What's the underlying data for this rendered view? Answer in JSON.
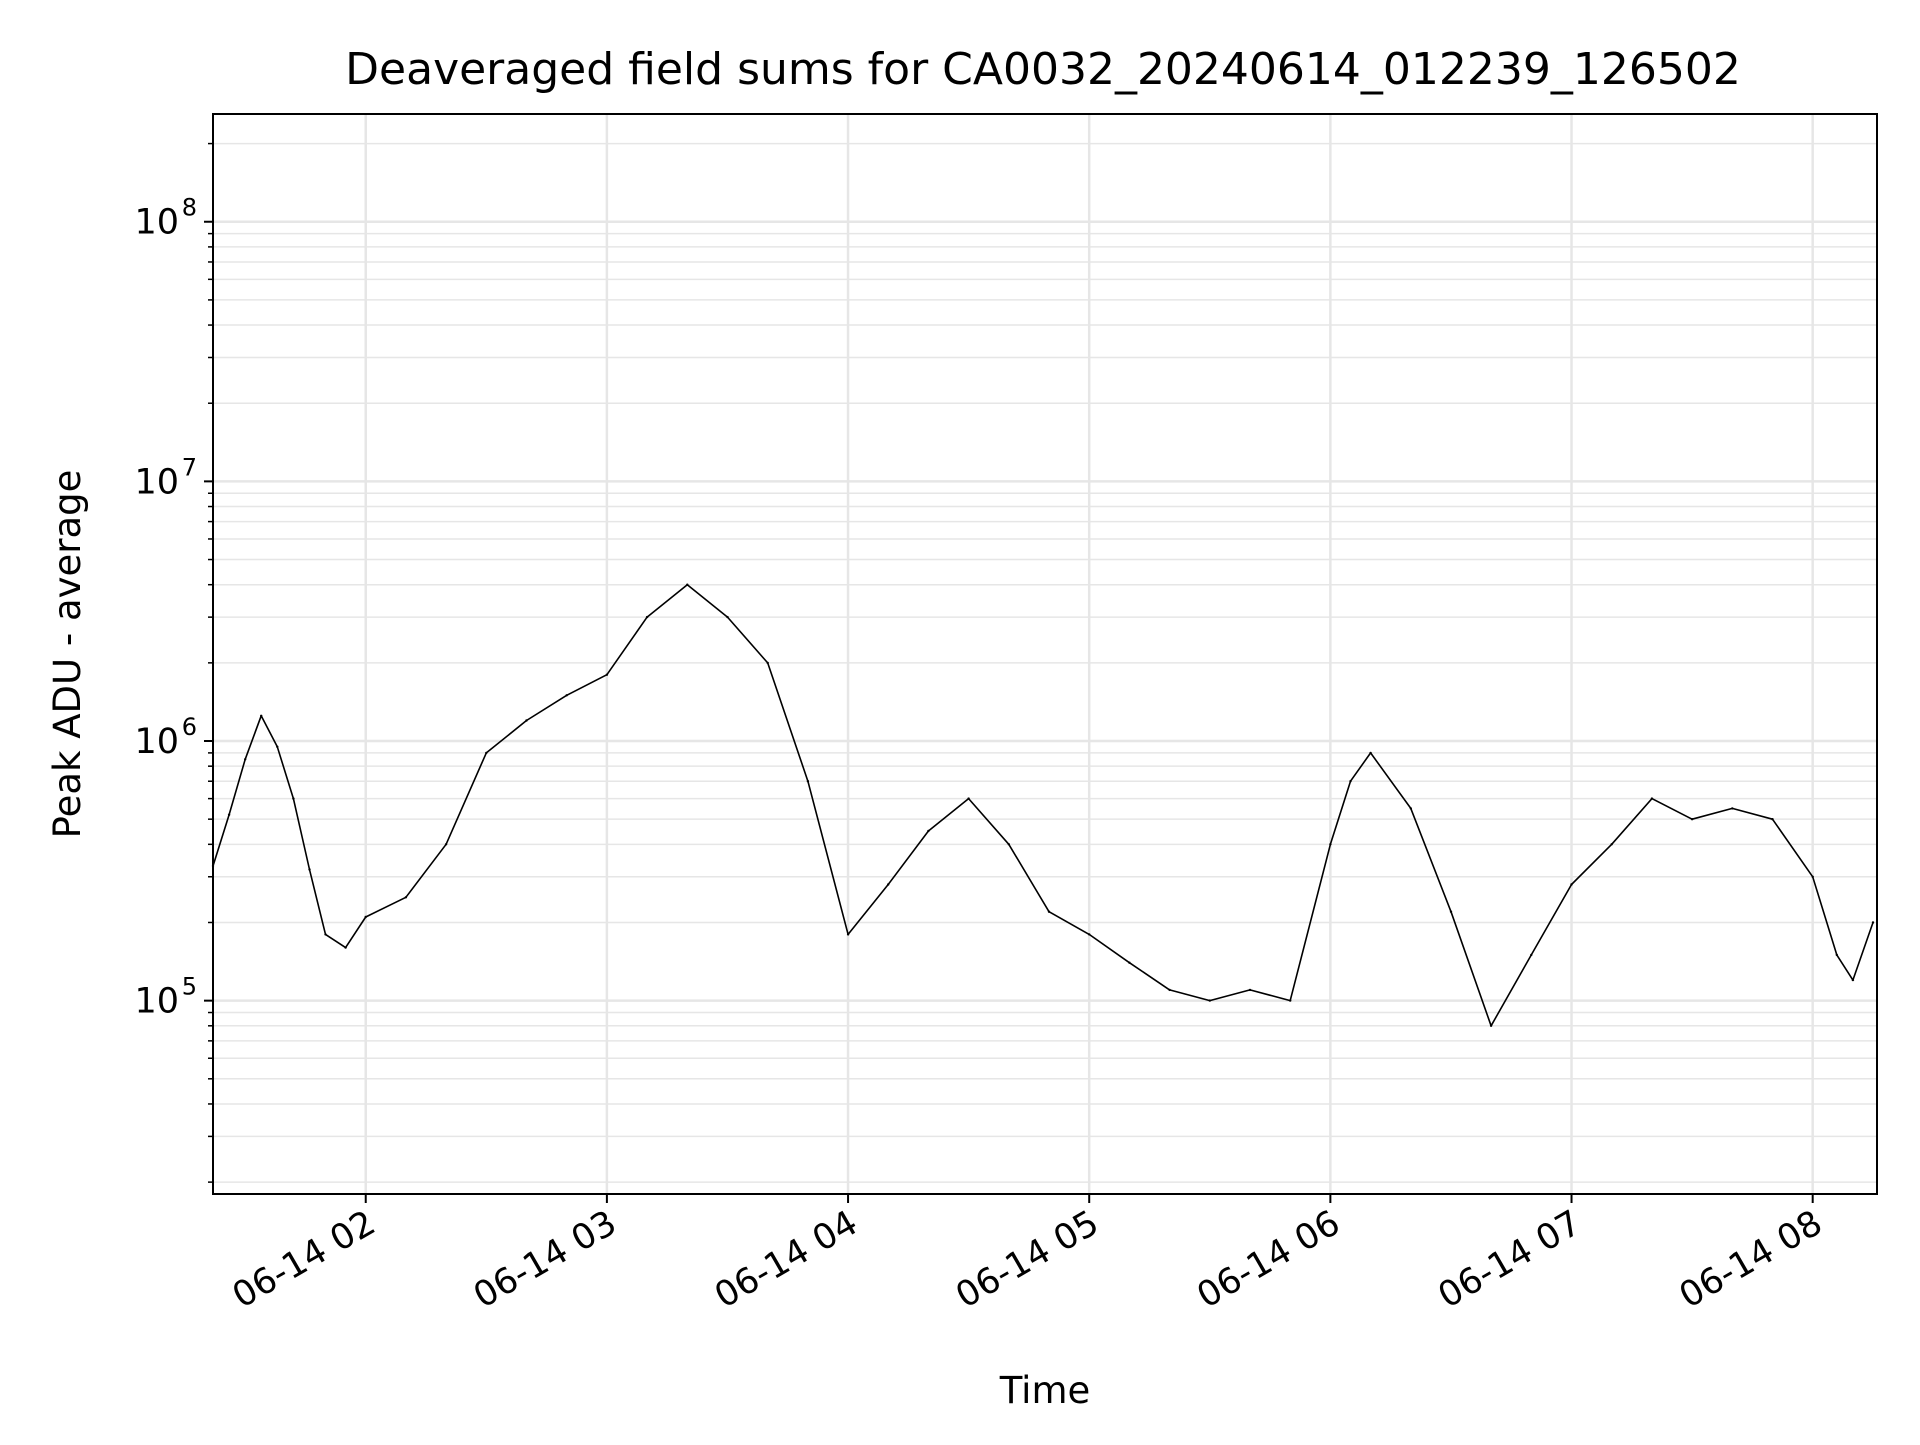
{
  "chart_data": {
    "type": "line",
    "title": "Deaveraged field sums for CA0032_20240614_012239_126502",
    "xlabel": "Time",
    "ylabel": "Peak ADU - average",
    "y_scale": "log",
    "grid": true,
    "legend": "none",
    "line_color": "#000000",
    "grid_color": "#e6e6e6",
    "xlim": [
      "2024-06-14 01:22",
      "2024-06-14 08:16"
    ],
    "ylim": [
      18000,
      260000000
    ],
    "x_ticks": [
      {
        "t": "2024-06-14 02:00",
        "label": "06-14 02"
      },
      {
        "t": "2024-06-14 03:00",
        "label": "06-14 03"
      },
      {
        "t": "2024-06-14 04:00",
        "label": "06-14 04"
      },
      {
        "t": "2024-06-14 05:00",
        "label": "06-14 05"
      },
      {
        "t": "2024-06-14 06:00",
        "label": "06-14 06"
      },
      {
        "t": "2024-06-14 07:00",
        "label": "06-14 07"
      },
      {
        "t": "2024-06-14 08:00",
        "label": "06-14 08"
      }
    ],
    "y_ticks": [
      {
        "v": 100000,
        "base": "10",
        "exp": "5"
      },
      {
        "v": 1000000,
        "base": "10",
        "exp": "6"
      },
      {
        "v": 10000000,
        "base": "10",
        "exp": "7"
      },
      {
        "v": 100000000,
        "base": "10",
        "exp": "8"
      }
    ],
    "series": [
      {
        "points": [
          [
            "2024-06-14 01:22",
            330000
          ],
          [
            "2024-06-14 01:26",
            520000
          ],
          [
            "2024-06-14 01:30",
            850000
          ],
          [
            "2024-06-14 01:34",
            1250000
          ],
          [
            "2024-06-14 01:38",
            950000
          ],
          [
            "2024-06-14 01:42",
            600000
          ],
          [
            "2024-06-14 01:46",
            320000
          ],
          [
            "2024-06-14 01:50",
            180000
          ],
          [
            "2024-06-14 01:55",
            160000
          ],
          [
            "2024-06-14 02:00",
            210000
          ],
          [
            "2024-06-14 02:10",
            250000
          ],
          [
            "2024-06-14 02:20",
            400000
          ],
          [
            "2024-06-14 02:30",
            900000
          ],
          [
            "2024-06-14 02:40",
            1200000
          ],
          [
            "2024-06-14 02:50",
            1500000
          ],
          [
            "2024-06-14 03:00",
            1800000
          ],
          [
            "2024-06-14 03:10",
            3000000
          ],
          [
            "2024-06-14 03:20",
            4000000
          ],
          [
            "2024-06-14 03:30",
            3000000
          ],
          [
            "2024-06-14 03:40",
            2000000
          ],
          [
            "2024-06-14 03:50",
            700000
          ],
          [
            "2024-06-14 04:00",
            180000
          ],
          [
            "2024-06-14 04:10",
            280000
          ],
          [
            "2024-06-14 04:20",
            450000
          ],
          [
            "2024-06-14 04:30",
            600000
          ],
          [
            "2024-06-14 04:40",
            400000
          ],
          [
            "2024-06-14 04:50",
            220000
          ],
          [
            "2024-06-14 05:00",
            180000
          ],
          [
            "2024-06-14 05:10",
            140000
          ],
          [
            "2024-06-14 05:20",
            110000
          ],
          [
            "2024-06-14 05:30",
            100000
          ],
          [
            "2024-06-14 05:40",
            110000
          ],
          [
            "2024-06-14 05:50",
            100000
          ],
          [
            "2024-06-14 06:00",
            400000
          ],
          [
            "2024-06-14 06:05",
            700000
          ],
          [
            "2024-06-14 06:10",
            900000
          ],
          [
            "2024-06-14 06:20",
            550000
          ],
          [
            "2024-06-14 06:30",
            220000
          ],
          [
            "2024-06-14 06:40",
            80000
          ],
          [
            "2024-06-14 06:50",
            150000
          ],
          [
            "2024-06-14 07:00",
            280000
          ],
          [
            "2024-06-14 07:10",
            400000
          ],
          [
            "2024-06-14 07:20",
            600000
          ],
          [
            "2024-06-14 07:30",
            500000
          ],
          [
            "2024-06-14 07:40",
            550000
          ],
          [
            "2024-06-14 07:50",
            500000
          ],
          [
            "2024-06-14 08:00",
            300000
          ],
          [
            "2024-06-14 08:06",
            150000
          ],
          [
            "2024-06-14 08:10",
            120000
          ],
          [
            "2024-06-14 08:15",
            200000
          ]
        ]
      }
    ]
  }
}
